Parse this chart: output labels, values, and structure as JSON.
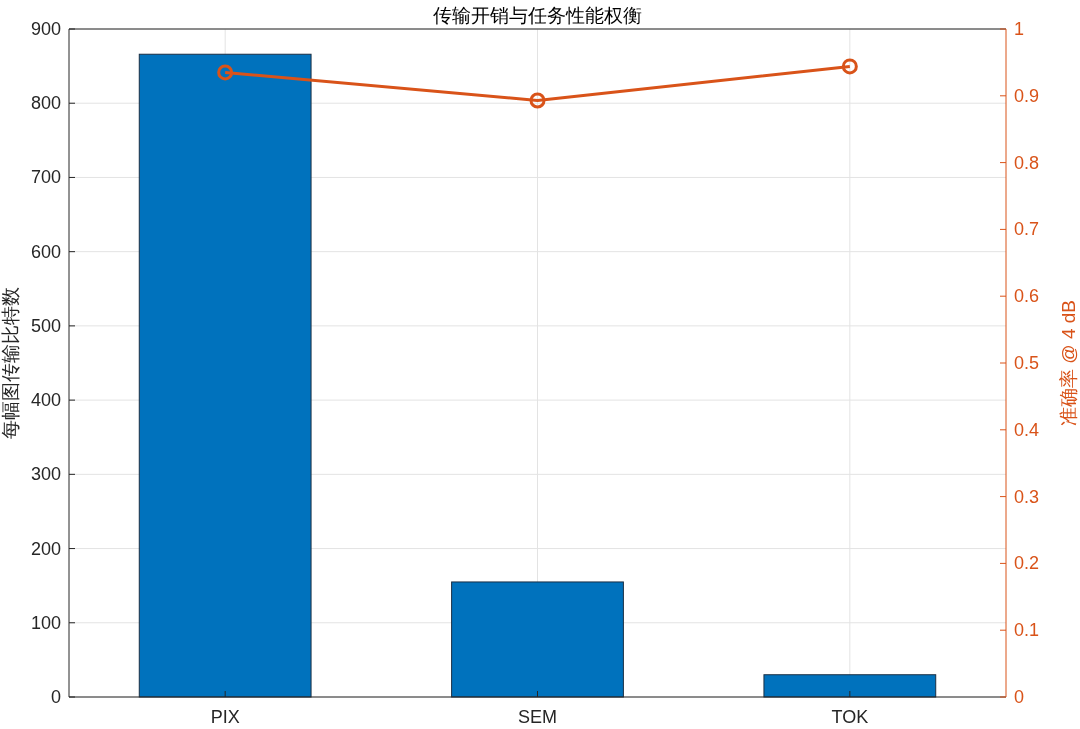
{
  "chart_data": {
    "type": "bar",
    "title": "传输开销与任务性能权衡",
    "ylabel": "每幅图传输比特数",
    "y2label": "准确率 @ 4 dB",
    "categories": [
      "PIX",
      "SEM",
      "TOK"
    ],
    "series": [
      {
        "color": "#0072bd",
        "values": [
          866,
          155,
          30
        ]
      },
      {
        "type": "line",
        "axis": "y2",
        "color": "#d95319",
        "marker": "circle",
        "values": [
          0.935,
          0.893,
          0.944
        ]
      }
    ],
    "ylim": [
      0,
      900
    ],
    "yticks": [
      0,
      100,
      200,
      300,
      400,
      500,
      600,
      700,
      800,
      900
    ],
    "y2lim": [
      0,
      1
    ],
    "y2ticks": [
      0,
      0.1,
      0.2,
      0.3,
      0.4,
      0.5,
      0.6,
      0.7,
      0.8,
      0.9,
      1
    ],
    "grid": true
  }
}
